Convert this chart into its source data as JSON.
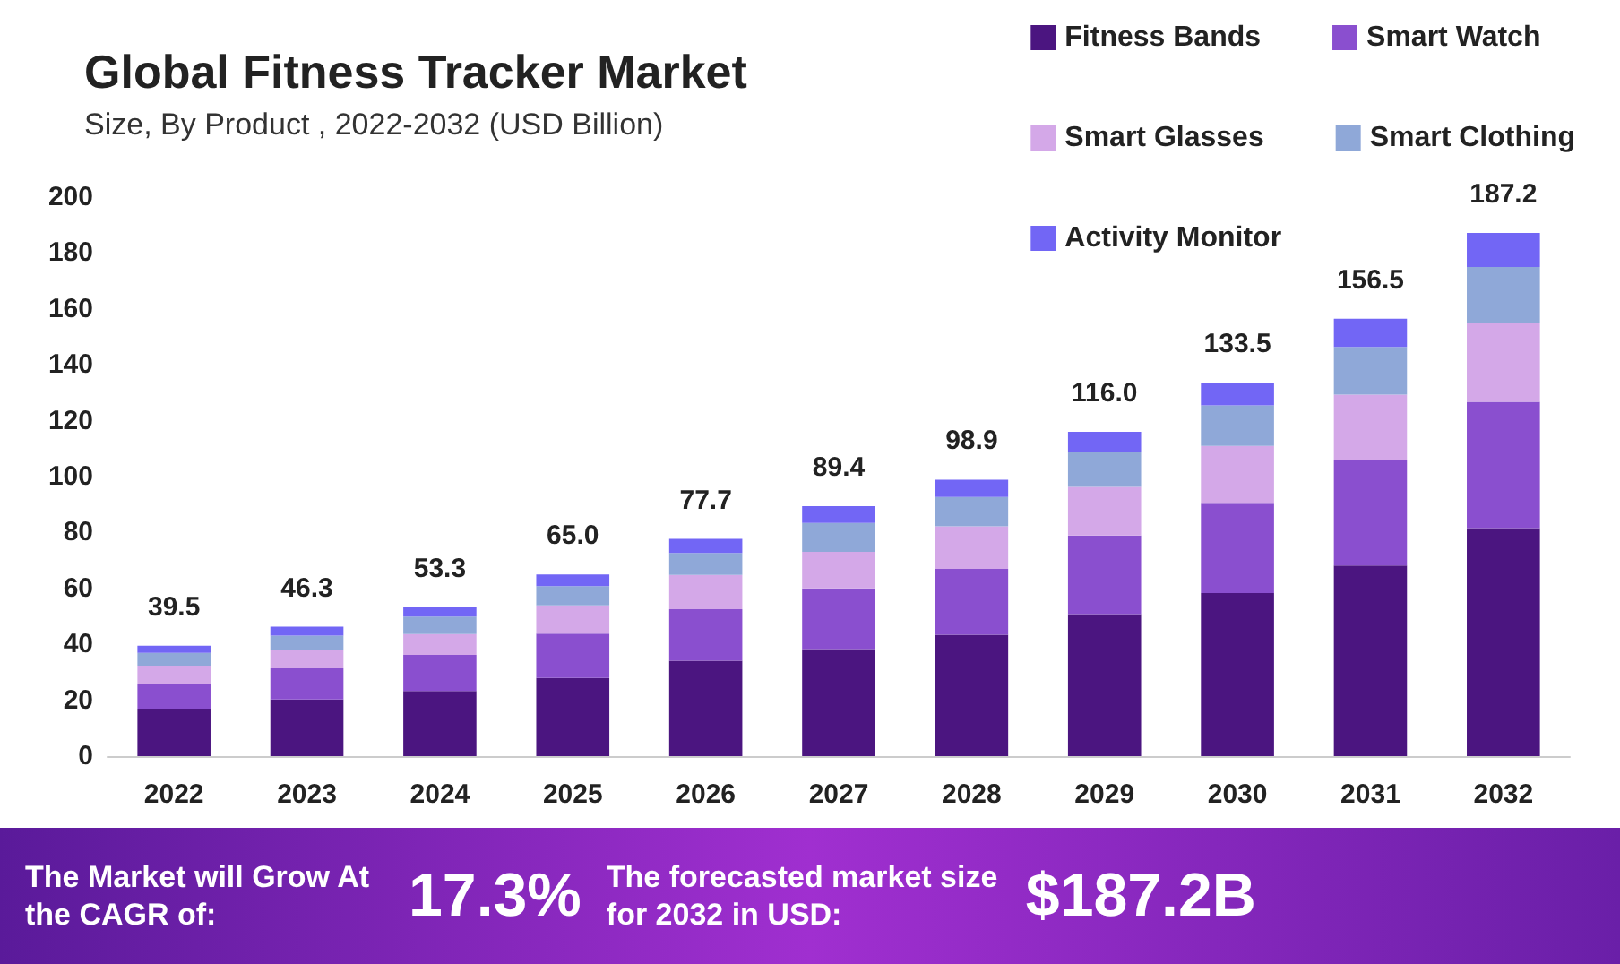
{
  "chart_data": {
    "type": "bar",
    "title": "Global Fitness Tracker Market",
    "subtitle": "Size, By Product , 2022-2032 (USD Billion)",
    "categories": [
      "2022",
      "2023",
      "2024",
      "2025",
      "2026",
      "2027",
      "2028",
      "2029",
      "2030",
      "2031",
      "2032"
    ],
    "series": [
      {
        "name": "Fitness Bands",
        "color": "#4b1580",
        "values": [
          17.0,
          20.3,
          23.3,
          28.0,
          34.1,
          38.3,
          43.4,
          50.8,
          58.3,
          68.2,
          81.6
        ]
      },
      {
        "name": "Smart Watch",
        "color": "#8a4fcf",
        "values": [
          9.0,
          11.1,
          12.9,
          15.8,
          18.5,
          21.7,
          23.6,
          28.1,
          32.3,
          37.7,
          45.2
        ]
      },
      {
        "name": "Smart Glasses",
        "color": "#d4a8e8",
        "values": [
          6.4,
          6.4,
          7.5,
          10.1,
          12.2,
          13.1,
          15.2,
          17.4,
          20.4,
          23.4,
          28.3
        ]
      },
      {
        "name": "Smart Clothing",
        "color": "#8fa8d8",
        "values": [
          4.5,
          5.3,
          6.2,
          6.9,
          7.9,
          10.3,
          10.5,
          12.4,
          14.5,
          17.1,
          19.9
        ]
      },
      {
        "name": "Activity Monitor",
        "color": "#7266f5",
        "values": [
          2.6,
          3.2,
          3.4,
          4.2,
          5.0,
          6.0,
          6.2,
          7.3,
          8.0,
          10.1,
          12.2
        ]
      }
    ],
    "stacked": true,
    "totals": [
      "39.5",
      "46.3",
      "53.3",
      "65.0",
      "77.7",
      "89.4",
      "98.9",
      "116.0",
      "133.5",
      "156.5",
      "187.2"
    ],
    "ylim": [
      0,
      200
    ],
    "yticks": [
      0,
      20,
      40,
      60,
      80,
      100,
      120,
      140,
      160,
      180,
      200
    ],
    "grid": false,
    "legend": "top right",
    "annotations": [
      "The Market will Grow At the CAGR of:",
      "17.3%",
      "The forecasted market size for 2032 in USD:",
      "$187.2B"
    ]
  }
}
